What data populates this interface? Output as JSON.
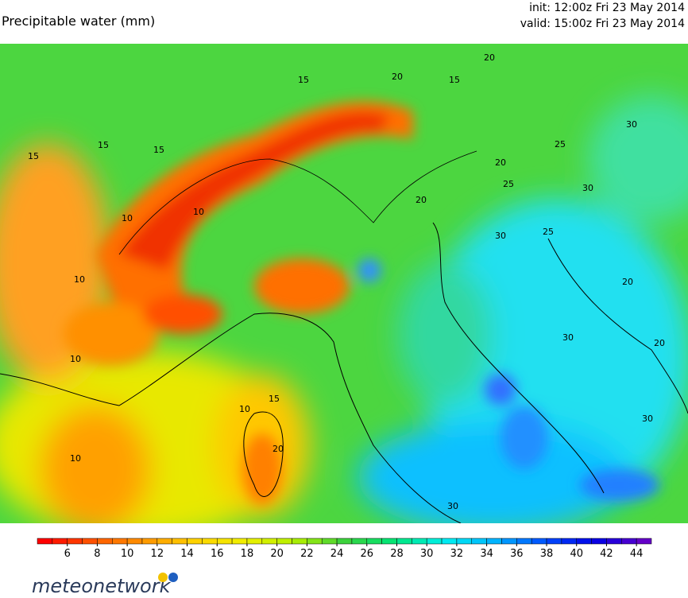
{
  "header": {
    "title": "Precipitable water (mm)",
    "init": "init: 12:00z Fri 23 May 2014",
    "valid": "valid: 15:00z Fri 23 May 2014"
  },
  "map": {
    "contour_labels": [
      "15",
      "15",
      "15",
      "15",
      "15",
      "20",
      "20",
      "20",
      "10",
      "10",
      "10",
      "10",
      "10",
      "20",
      "25",
      "30",
      "30",
      "30",
      "25",
      "20",
      "20",
      "30",
      "10",
      "15",
      "20",
      "30",
      "25",
      "30"
    ]
  },
  "colorbar": {
    "lim": [
      4,
      45
    ],
    "ticks": [
      6,
      8,
      10,
      12,
      14,
      16,
      18,
      20,
      22,
      24,
      26,
      28,
      30,
      32,
      34,
      36,
      38,
      40,
      42,
      44
    ],
    "colors": [
      "#ff0000",
      "#ff5a00",
      "#ff9600",
      "#ffd200",
      "#f0f000",
      "#b4f000",
      "#3cd23c",
      "#00e678",
      "#00f0f0",
      "#00b4ff",
      "#0050ff",
      "#0000e6",
      "#6400c8"
    ]
  },
  "logo": {
    "text": "meteonetwork"
  }
}
